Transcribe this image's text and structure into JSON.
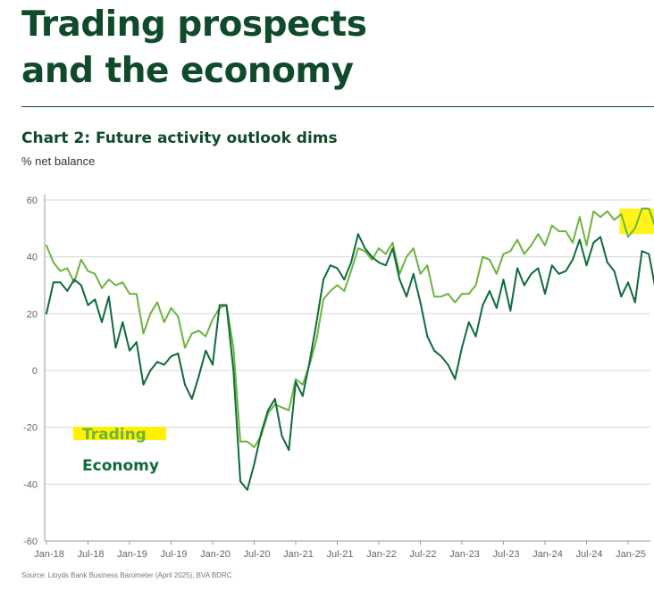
{
  "page": {
    "title_line1": "Trading prospects",
    "title_line2": "and the economy",
    "source": "Source: Lloyds Bank Business Barometer (April 2025), BVA BDRC"
  },
  "colors": {
    "trading": "#6db33f",
    "economy": "#0e6b3a",
    "highlight": "#fff200",
    "grid": "#d9d9d9"
  },
  "chart_data": {
    "type": "line",
    "title": "Chart 2: Future activity outlook dims",
    "ylabel": "% net balance",
    "xlabel": "",
    "ylim": [
      -60,
      60
    ],
    "yticks": [
      60,
      40,
      20,
      0,
      -20,
      -40,
      -60
    ],
    "xtick_labels": [
      "Jan-18",
      "Jul-18",
      "Jan-19",
      "Jul-19",
      "Jan-20",
      "Jul-20",
      "Jan-21",
      "Jul-21",
      "Jan-22",
      "Jul-22",
      "Jan-23",
      "Jul-23",
      "Jan-24",
      "Jul-24",
      "Jan-25"
    ],
    "x_start": "Jan-18",
    "frequency": "monthly",
    "legend_position": "lower-left",
    "series": [
      {
        "name": "Trading",
        "values": [
          44,
          38,
          35,
          36,
          31,
          39,
          35,
          34,
          29,
          32,
          30,
          31,
          27,
          27,
          13,
          20,
          24,
          17,
          22,
          19,
          8,
          13,
          14,
          12,
          18,
          22,
          23,
          8,
          -25,
          -25,
          -27,
          -23,
          -15,
          -12,
          -13,
          -14,
          -3,
          -5,
          2,
          11,
          25,
          28,
          30,
          28,
          35,
          43,
          42,
          39,
          43,
          41,
          45,
          34,
          40,
          43,
          34,
          37,
          26,
          26,
          27,
          24,
          27,
          27,
          30,
          40,
          39,
          34,
          41,
          42,
          46,
          41,
          44,
          48,
          44,
          51,
          49,
          49,
          45,
          54,
          44,
          56,
          54,
          56,
          53,
          55,
          47,
          50,
          57,
          57,
          50
        ],
        "highlight_from_index": 83
      },
      {
        "name": "Economy",
        "values": [
          20,
          31,
          31,
          28,
          32,
          30,
          23,
          25,
          17,
          26,
          8,
          17,
          7,
          10,
          -5,
          0,
          3,
          2,
          5,
          6,
          -5,
          -10,
          -2,
          7,
          2,
          23,
          23,
          0,
          -39,
          -42,
          -33,
          -22,
          -14,
          -10,
          -23,
          -28,
          -4,
          -9,
          3,
          17,
          32,
          37,
          36,
          32,
          38,
          48,
          43,
          40,
          38,
          37,
          43,
          32,
          26,
          34,
          24,
          12,
          7,
          5,
          2,
          -3,
          8,
          17,
          12,
          23,
          28,
          22,
          32,
          21,
          36,
          30,
          34,
          36,
          27,
          37,
          34,
          35,
          39,
          46,
          37,
          45,
          47,
          38,
          35,
          26,
          31,
          24,
          42,
          41,
          28
        ]
      }
    ]
  }
}
